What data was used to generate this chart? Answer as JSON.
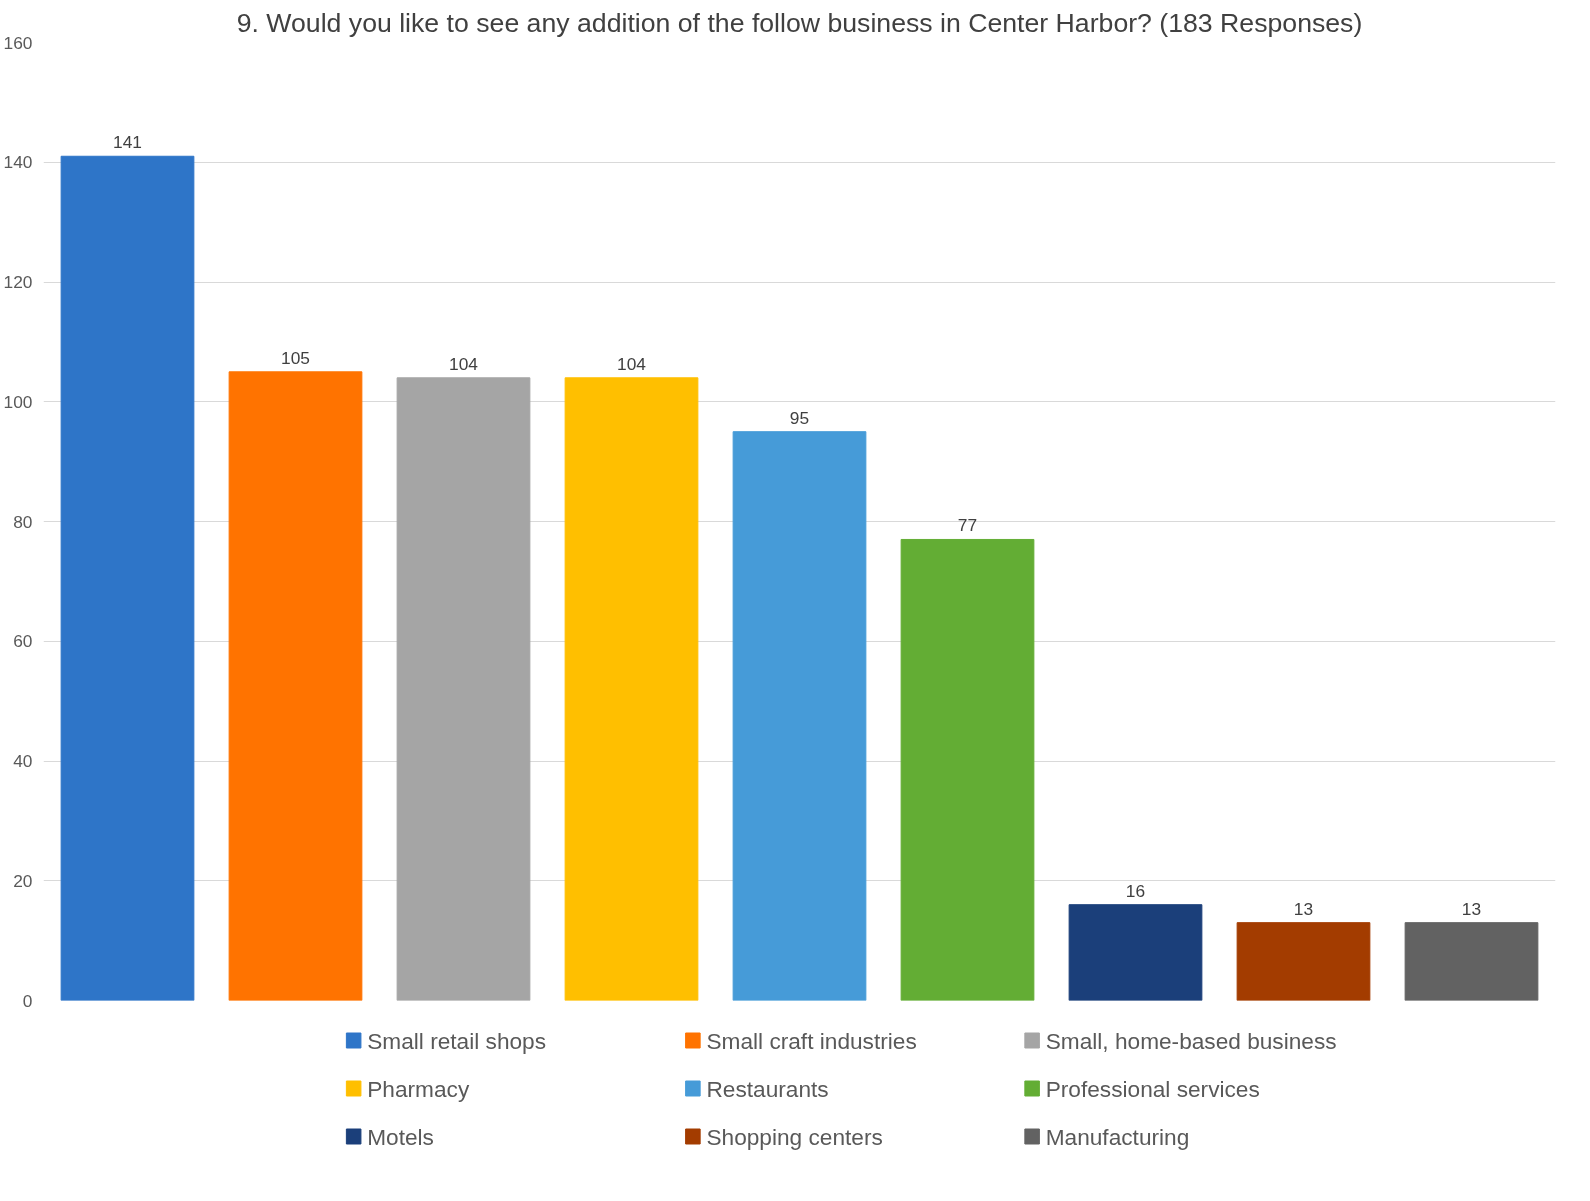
{
  "chart_data": {
    "type": "bar",
    "title": "9. Would you like to see any addition of the follow business in Center Harbor? (183 Responses)",
    "categories": [
      null,
      null,
      null,
      null,
      null,
      null,
      null,
      null,
      null
    ],
    "series": [
      {
        "name": "Small retail shops",
        "color": "#2e75c8",
        "values": [
          141,
          null,
          null,
          null,
          null,
          null,
          null,
          null,
          null
        ]
      },
      {
        "name": "Small craft industries",
        "color": "#ff7300",
        "values": [
          null,
          105,
          null,
          null,
          null,
          null,
          null,
          null,
          null
        ]
      },
      {
        "name": "Small, home-based business",
        "color": "#a5a5a5",
        "values": [
          null,
          null,
          104,
          null,
          null,
          null,
          null,
          null,
          null
        ]
      },
      {
        "name": "Pharmacy",
        "color": "#ffbf00",
        "values": [
          null,
          null,
          null,
          104,
          null,
          null,
          null,
          null,
          null
        ]
      },
      {
        "name": "Restaurants",
        "color": "#469bd8",
        "values": [
          null,
          null,
          null,
          null,
          95,
          null,
          null,
          null,
          null
        ]
      },
      {
        "name": "Professional services",
        "color": "#63ad34",
        "values": [
          null,
          null,
          null,
          null,
          null,
          77,
          null,
          null,
          null
        ]
      },
      {
        "name": "Motels",
        "color": "#1b3f7a",
        "values": [
          null,
          null,
          null,
          null,
          null,
          null,
          16,
          null,
          null
        ]
      },
      {
        "name": "Shopping centers",
        "color": "#a33c00",
        "values": [
          null,
          null,
          null,
          null,
          null,
          null,
          null,
          13,
          null
        ]
      },
      {
        "name": "Manufacturing",
        "color": "#626262",
        "values": [
          null,
          null,
          null,
          null,
          null,
          null,
          null,
          null,
          13
        ]
      }
    ],
    "ylim": [
      0,
      160
    ],
    "yticks": [
      0,
      20,
      40,
      60,
      80,
      100,
      120,
      140,
      160
    ],
    "grid": "y",
    "legend": "bottom",
    "data_labels": true,
    "tick_labels": "y"
  }
}
